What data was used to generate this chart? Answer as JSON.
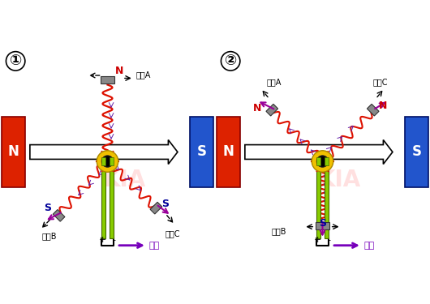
{
  "bg_color": "#ffffff",
  "fig_label1": "①",
  "fig_label2": "②",
  "magnet_red": "#dd2200",
  "magnet_blue": "#2255cc",
  "coil_color": "#dd1100",
  "coil_inner_color": "#6622aa",
  "brush_color": "#888888",
  "commutator_color": "#f0c000",
  "shaft_color": "#88cc00",
  "arrow_color": "#990099",
  "current_arrow_color": "#7700bb",
  "text_color": "#000000",
  "N_color": "#cc0000",
  "S_color": "#000099",
  "white": "#ffffff",
  "black": "#000000",
  "label_A": "线圈A",
  "label_B": "线圈B",
  "label_C": "线圈C",
  "label_current": "电流",
  "label_N": "N",
  "label_S": "S",
  "watermark": "KIA"
}
